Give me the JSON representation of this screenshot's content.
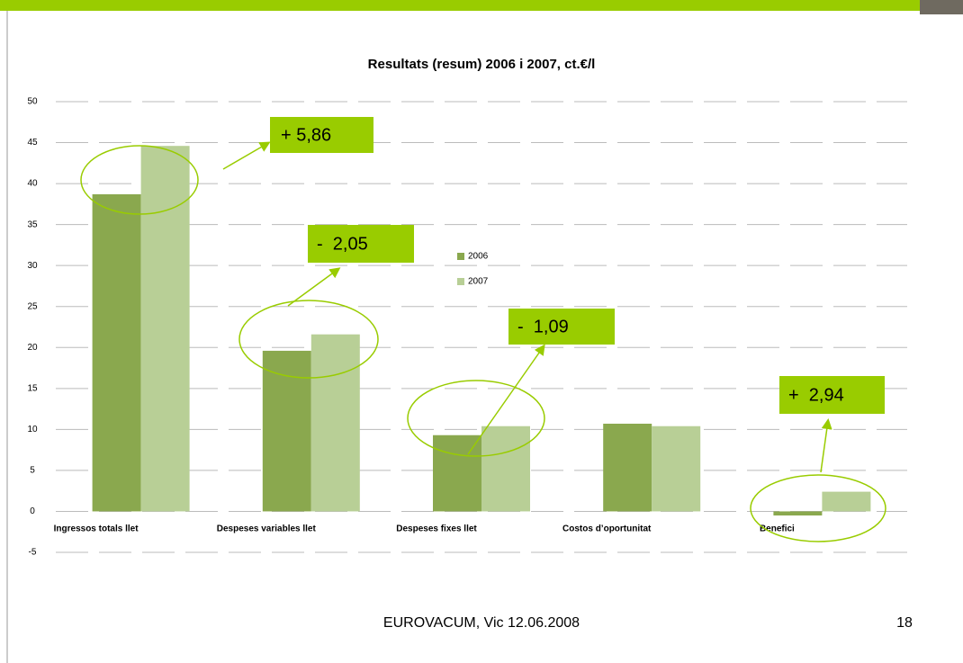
{
  "chart_data": {
    "type": "bar",
    "title": "Resultats (resum) 2006 i 2007, ct.€/l",
    "categories": [
      "Ingressos totals llet",
      "Despeses variables llet",
      "Despeses fixes llet",
      "Costos d’oportunitat",
      "Benefici"
    ],
    "series": [
      {
        "name": "2006",
        "color": "#8aa84e",
        "values": [
          38.7,
          19.6,
          9.3,
          10.7,
          -0.5
        ]
      },
      {
        "name": "2007",
        "color": "#b8cf96",
        "values": [
          44.6,
          21.6,
          10.4,
          10.4,
          2.4
        ]
      }
    ],
    "ylim": [
      -5,
      50
    ],
    "yticks": [
      -5,
      0,
      5,
      10,
      15,
      20,
      25,
      30,
      35,
      40,
      45,
      50
    ],
    "grid": true,
    "annotations": [
      "+ 5,86",
      "-  2,05",
      "-  1,09",
      "+  2,94"
    ]
  },
  "footer": "EUROVACUM, Vic 12.06.2008",
  "page_number": "18"
}
